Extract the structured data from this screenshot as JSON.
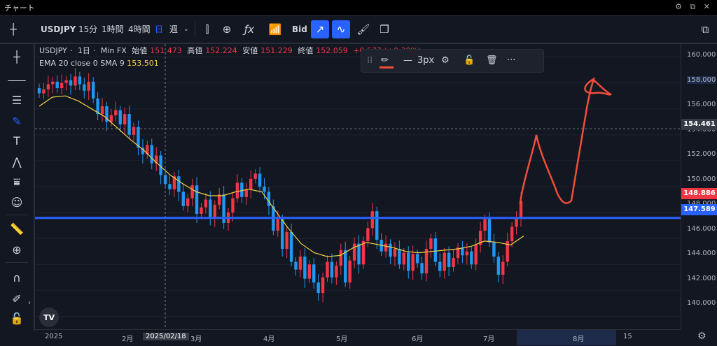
{
  "window": {
    "title": "チャート",
    "controls": "⚙ ⧉ ✕"
  },
  "toolbar": {
    "symbol": "USDJPY",
    "intervals": [
      "15分",
      "1時間",
      "4時間",
      "日",
      "週"
    ],
    "bid_label": "Bid"
  },
  "legend": {
    "symbol": "USDJPY",
    "interval": "1日",
    "source": "Min FX",
    "open_label": "始値",
    "open": "151.473",
    "high_label": "高値",
    "high": "152.224",
    "low_label": "安値",
    "low": "151.229",
    "close_label": "終値",
    "close": "152.059",
    "change": "+0.577 (+0.38%)",
    "indicator_label": "EMA 20 close 0 SMA 9",
    "indicator_value": "153.501"
  },
  "drawing_toolbar": {
    "width_label": "3px",
    "more": "···"
  },
  "price_axis": {
    "ticks": [
      "160.000",
      "158.000",
      "156.000",
      "154.000",
      "152.000",
      "150.000",
      "148.000",
      "146.000",
      "144.000",
      "142.000",
      "140.000"
    ],
    "crosshair_price": "154.461",
    "last_price": "148.886",
    "hline_price": "147.589"
  },
  "time_axis": {
    "ticks": [
      "2025",
      "2月",
      "3月",
      "4月",
      "5月",
      "6月",
      "7月",
      "8月",
      "15"
    ],
    "crosshair_date": "2025/02/18"
  },
  "chart_data": {
    "type": "candlestick",
    "y_range": [
      139,
      161
    ],
    "x_range": [
      "2024-12-26",
      "2025-08-22"
    ],
    "up_color": "#f23645",
    "down_color": "#2196f3",
    "ema_color": "#f5d142",
    "hline_color": "#2962ff",
    "freehand_color": "#f04e3a",
    "hline": 147.589,
    "last_price": 148.886,
    "crosshair_price": 154.461,
    "crosshair_date": "2025-02-18",
    "candles_close": [
      157.2,
      157.5,
      157.9,
      158.1,
      157.6,
      158.0,
      158.2,
      157.8,
      158.5,
      157.9,
      157.4,
      158.1,
      156.8,
      155.6,
      156.2,
      155.0,
      155.5,
      155.9,
      154.8,
      155.6,
      154.0,
      154.6,
      153.0,
      152.5,
      153.2,
      151.8,
      152.4,
      150.9,
      150.2,
      149.8,
      150.8,
      149.6,
      148.5,
      149.1,
      150.1,
      147.9,
      148.4,
      149.0,
      147.6,
      148.6,
      149.4,
      147.2,
      148.0,
      149.1,
      150.3,
      149.2,
      149.8,
      150.6,
      151.0,
      150.0,
      149.6,
      148.5,
      146.6,
      147.5,
      145.2,
      146.5,
      144.2,
      143.6,
      144.6,
      142.9,
      144.0,
      142.6,
      141.8,
      143.0,
      144.2,
      143.0,
      143.9,
      145.1,
      142.6,
      144.3,
      145.6,
      144.0,
      145.8,
      146.8,
      148.1,
      145.9,
      145.0,
      145.6,
      144.6,
      145.2,
      144.0,
      144.9,
      143.5,
      144.8,
      144.1,
      143.3,
      145.2,
      146.0,
      144.2,
      143.5,
      144.9,
      143.8,
      144.5,
      145.3,
      144.7,
      145.0,
      144.0,
      145.5,
      146.6,
      147.5,
      145.7,
      144.6,
      143.2,
      144.2,
      145.8,
      146.9,
      147.6,
      148.9
    ],
    "ema": [
      156.2,
      156.9,
      157.0,
      156.6,
      156.0,
      155.4,
      154.5,
      153.6,
      152.8,
      151.8,
      150.9,
      150.2,
      149.6,
      149.3,
      149.3,
      149.6,
      149.8,
      149.6,
      148.2,
      146.8,
      145.6,
      144.9,
      144.6,
      144.7,
      145.3,
      145.7,
      145.5,
      145.3,
      145.0,
      144.9,
      145.0,
      145.1,
      145.2,
      145.4,
      145.8,
      145.7,
      145.5,
      146.2
    ]
  }
}
